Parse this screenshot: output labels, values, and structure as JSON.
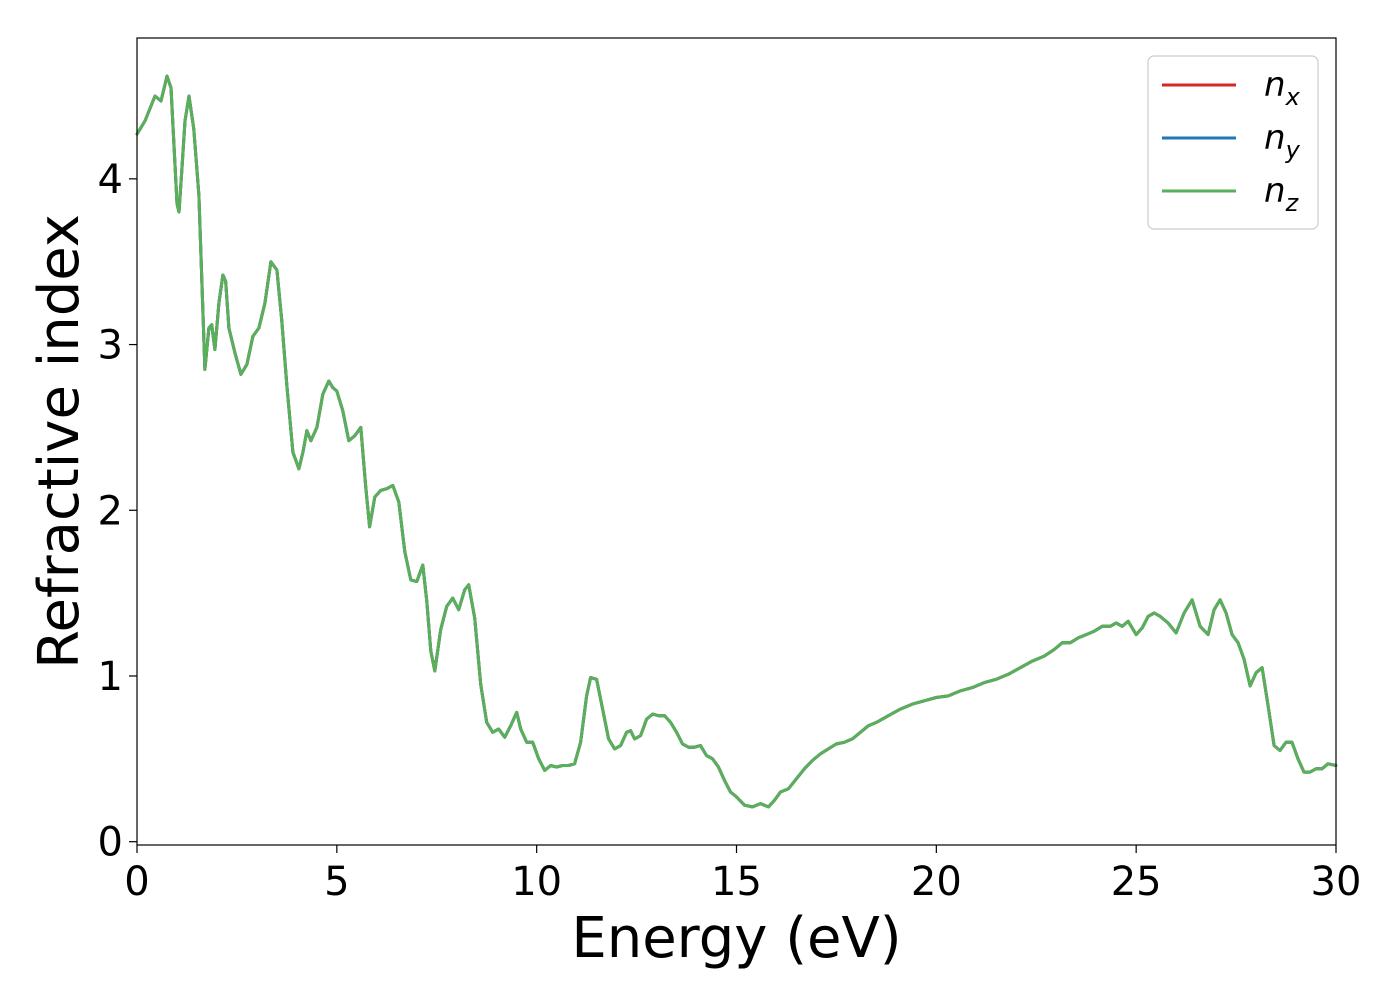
{
  "chart_data": {
    "type": "line",
    "xlabel": "Energy (eV)",
    "ylabel": "Refractive index",
    "xlim": [
      0,
      30
    ],
    "ylim": [
      -0.02,
      4.85
    ],
    "xticks": [
      0,
      5,
      10,
      15,
      20,
      25,
      30
    ],
    "yticks": [
      0,
      1,
      2,
      3,
      4
    ],
    "grid": false,
    "legend_position": "top-right",
    "series": [
      {
        "name": "n",
        "subscript": "x",
        "color": "#d62728",
        "x": [
          0,
          0.2,
          0.45,
          0.6,
          0.75,
          0.85,
          1.0,
          1.05,
          1.12,
          1.2,
          1.3,
          1.42,
          1.55,
          1.7,
          1.8,
          1.87,
          1.95,
          2.05,
          2.15,
          2.22,
          2.3,
          2.45,
          2.6,
          2.75,
          2.9,
          3.05,
          3.2,
          3.35,
          3.5,
          3.62,
          3.75,
          3.9,
          4.05,
          4.15,
          4.25,
          4.35,
          4.5,
          4.65,
          4.8,
          4.9,
          5.0,
          5.15,
          5.3,
          5.45,
          5.6,
          5.72,
          5.82,
          5.95,
          6.1,
          6.25,
          6.4,
          6.55,
          6.7,
          6.85,
          7.0,
          7.15,
          7.25,
          7.35,
          7.45,
          7.6,
          7.75,
          7.9,
          8.05,
          8.2,
          8.3,
          8.45,
          8.6,
          8.75,
          8.9,
          9.05,
          9.2,
          9.35,
          9.5,
          9.6,
          9.75,
          9.9,
          10.05,
          10.2,
          10.35,
          10.5,
          10.65,
          10.8,
          10.95,
          11.1,
          11.25,
          11.35,
          11.5,
          11.65,
          11.8,
          11.95,
          12.1,
          12.25,
          12.35,
          12.45,
          12.6,
          12.75,
          12.9,
          13.05,
          13.2,
          13.35,
          13.5,
          13.65,
          13.8,
          13.95,
          14.1,
          14.25,
          14.4,
          14.55,
          14.7,
          14.85,
          15.0,
          15.2,
          15.4,
          15.6,
          15.8,
          15.95,
          16.1,
          16.3,
          16.5,
          16.7,
          16.9,
          17.1,
          17.3,
          17.5,
          17.7,
          17.9,
          18.1,
          18.3,
          18.5,
          18.8,
          19.1,
          19.4,
          19.7,
          20.0,
          20.3,
          20.6,
          20.9,
          21.2,
          21.5,
          21.8,
          22.1,
          22.4,
          22.7,
          22.95,
          23.15,
          23.35,
          23.55,
          23.75,
          23.95,
          24.15,
          24.35,
          24.5,
          24.65,
          24.8,
          25.0,
          25.15,
          25.3,
          25.45,
          25.6,
          25.8,
          26.0,
          26.2,
          26.4,
          26.6,
          26.8,
          26.95,
          27.1,
          27.25,
          27.4,
          27.55,
          27.7,
          27.85,
          28.0,
          28.15,
          28.3,
          28.45,
          28.6,
          28.75,
          28.9,
          29.05,
          29.2,
          29.35,
          29.5,
          29.65,
          29.8,
          30.0
        ],
        "y": [
          4.27,
          4.35,
          4.5,
          4.47,
          4.62,
          4.55,
          3.85,
          3.8,
          4.05,
          4.35,
          4.5,
          4.3,
          3.9,
          2.85,
          3.1,
          3.12,
          2.97,
          3.25,
          3.42,
          3.38,
          3.1,
          2.95,
          2.82,
          2.88,
          3.05,
          3.1,
          3.25,
          3.5,
          3.45,
          3.15,
          2.75,
          2.35,
          2.25,
          2.35,
          2.48,
          2.42,
          2.5,
          2.7,
          2.78,
          2.74,
          2.72,
          2.6,
          2.42,
          2.45,
          2.5,
          2.15,
          1.9,
          2.08,
          2.12,
          2.13,
          2.15,
          2.05,
          1.75,
          1.58,
          1.57,
          1.67,
          1.45,
          1.15,
          1.03,
          1.28,
          1.42,
          1.47,
          1.4,
          1.52,
          1.55,
          1.35,
          0.95,
          0.72,
          0.66,
          0.68,
          0.63,
          0.7,
          0.78,
          0.68,
          0.6,
          0.6,
          0.5,
          0.43,
          0.46,
          0.45,
          0.46,
          0.46,
          0.47,
          0.6,
          0.88,
          0.99,
          0.98,
          0.8,
          0.62,
          0.56,
          0.58,
          0.66,
          0.67,
          0.62,
          0.64,
          0.74,
          0.77,
          0.76,
          0.76,
          0.72,
          0.66,
          0.59,
          0.57,
          0.57,
          0.58,
          0.52,
          0.5,
          0.45,
          0.37,
          0.3,
          0.27,
          0.22,
          0.21,
          0.23,
          0.21,
          0.25,
          0.3,
          0.32,
          0.38,
          0.44,
          0.49,
          0.53,
          0.56,
          0.59,
          0.6,
          0.62,
          0.66,
          0.7,
          0.72,
          0.76,
          0.8,
          0.83,
          0.85,
          0.87,
          0.88,
          0.91,
          0.93,
          0.96,
          0.98,
          1.01,
          1.05,
          1.09,
          1.12,
          1.16,
          1.2,
          1.2,
          1.23,
          1.25,
          1.27,
          1.3,
          1.3,
          1.32,
          1.3,
          1.33,
          1.25,
          1.29,
          1.36,
          1.38,
          1.36,
          1.32,
          1.26,
          1.38,
          1.46,
          1.3,
          1.25,
          1.4,
          1.46,
          1.38,
          1.25,
          1.2,
          1.1,
          0.94,
          1.02,
          1.05,
          0.82,
          0.58,
          0.55,
          0.6,
          0.6,
          0.5,
          0.42,
          0.42,
          0.44,
          0.44,
          0.47,
          0.46
        ]
      },
      {
        "name": "n",
        "subscript": "y",
        "color": "#1f77b4",
        "x": [
          0,
          0.2,
          0.45,
          0.6,
          0.75,
          0.85,
          1.0,
          1.05,
          1.12,
          1.2,
          1.3,
          1.42,
          1.55,
          1.7,
          1.8,
          1.87,
          1.95,
          2.05,
          2.15,
          2.22,
          2.3,
          2.45,
          2.6,
          2.75,
          2.9,
          3.05,
          3.2,
          3.35,
          3.5,
          3.62,
          3.75,
          3.9,
          4.05,
          4.15,
          4.25,
          4.35,
          4.5,
          4.65,
          4.8,
          4.9,
          5.0,
          5.15,
          5.3,
          5.45,
          5.6,
          5.72,
          5.82,
          5.95,
          6.1,
          6.25,
          6.4,
          6.55,
          6.7,
          6.85,
          7.0,
          7.15,
          7.25,
          7.35,
          7.45,
          7.6,
          7.75,
          7.9,
          8.05,
          8.2,
          8.3,
          8.45,
          8.6,
          8.75,
          8.9,
          9.05,
          9.2,
          9.35,
          9.5,
          9.6,
          9.75,
          9.9,
          10.05,
          10.2,
          10.35,
          10.5,
          10.65,
          10.8,
          10.95,
          11.1,
          11.25,
          11.35,
          11.5,
          11.65,
          11.8,
          11.95,
          12.1,
          12.25,
          12.35,
          12.45,
          12.6,
          12.75,
          12.9,
          13.05,
          13.2,
          13.35,
          13.5,
          13.65,
          13.8,
          13.95,
          14.1,
          14.25,
          14.4,
          14.55,
          14.7,
          14.85,
          15.0,
          15.2,
          15.4,
          15.6,
          15.8,
          15.95,
          16.1,
          16.3,
          16.5,
          16.7,
          16.9,
          17.1,
          17.3,
          17.5,
          17.7,
          17.9,
          18.1,
          18.3,
          18.5,
          18.8,
          19.1,
          19.4,
          19.7,
          20.0,
          20.3,
          20.6,
          20.9,
          21.2,
          21.5,
          21.8,
          22.1,
          22.4,
          22.7,
          22.95,
          23.15,
          23.35,
          23.55,
          23.75,
          23.95,
          24.15,
          24.35,
          24.5,
          24.65,
          24.8,
          25.0,
          25.15,
          25.3,
          25.45,
          25.6,
          25.8,
          26.0,
          26.2,
          26.4,
          26.6,
          26.8,
          26.95,
          27.1,
          27.25,
          27.4,
          27.55,
          27.7,
          27.85,
          28.0,
          28.15,
          28.3,
          28.45,
          28.6,
          28.75,
          28.9,
          29.05,
          29.2,
          29.35,
          29.5,
          29.65,
          29.8,
          30.0
        ],
        "y": [
          4.27,
          4.35,
          4.5,
          4.47,
          4.62,
          4.55,
          3.85,
          3.8,
          4.05,
          4.35,
          4.5,
          4.3,
          3.9,
          2.85,
          3.1,
          3.12,
          2.97,
          3.25,
          3.42,
          3.38,
          3.1,
          2.95,
          2.82,
          2.88,
          3.05,
          3.1,
          3.25,
          3.5,
          3.45,
          3.15,
          2.75,
          2.35,
          2.25,
          2.35,
          2.48,
          2.42,
          2.5,
          2.7,
          2.78,
          2.74,
          2.72,
          2.6,
          2.42,
          2.45,
          2.5,
          2.15,
          1.9,
          2.08,
          2.12,
          2.13,
          2.15,
          2.05,
          1.75,
          1.58,
          1.57,
          1.67,
          1.45,
          1.15,
          1.03,
          1.28,
          1.42,
          1.47,
          1.4,
          1.52,
          1.55,
          1.35,
          0.95,
          0.72,
          0.66,
          0.68,
          0.63,
          0.7,
          0.78,
          0.68,
          0.6,
          0.6,
          0.5,
          0.43,
          0.46,
          0.45,
          0.46,
          0.46,
          0.47,
          0.6,
          0.88,
          0.99,
          0.98,
          0.8,
          0.62,
          0.56,
          0.58,
          0.66,
          0.67,
          0.62,
          0.64,
          0.74,
          0.77,
          0.76,
          0.76,
          0.72,
          0.66,
          0.59,
          0.57,
          0.57,
          0.58,
          0.52,
          0.5,
          0.45,
          0.37,
          0.3,
          0.27,
          0.22,
          0.21,
          0.23,
          0.21,
          0.25,
          0.3,
          0.32,
          0.38,
          0.44,
          0.49,
          0.53,
          0.56,
          0.59,
          0.6,
          0.62,
          0.66,
          0.7,
          0.72,
          0.76,
          0.8,
          0.83,
          0.85,
          0.87,
          0.88,
          0.91,
          0.93,
          0.96,
          0.98,
          1.01,
          1.05,
          1.09,
          1.12,
          1.16,
          1.2,
          1.2,
          1.23,
          1.25,
          1.27,
          1.3,
          1.3,
          1.32,
          1.3,
          1.33,
          1.25,
          1.29,
          1.36,
          1.38,
          1.36,
          1.32,
          1.26,
          1.38,
          1.46,
          1.3,
          1.25,
          1.4,
          1.46,
          1.38,
          1.25,
          1.2,
          1.1,
          0.94,
          1.02,
          1.05,
          0.82,
          0.58,
          0.55,
          0.6,
          0.6,
          0.5,
          0.42,
          0.42,
          0.44,
          0.44,
          0.47,
          0.46
        ]
      },
      {
        "name": "n",
        "subscript": "z",
        "color": "#5aaf5a",
        "x": [
          0,
          0.2,
          0.45,
          0.6,
          0.75,
          0.85,
          1.0,
          1.05,
          1.12,
          1.2,
          1.3,
          1.42,
          1.55,
          1.7,
          1.8,
          1.87,
          1.95,
          2.05,
          2.15,
          2.22,
          2.3,
          2.45,
          2.6,
          2.75,
          2.9,
          3.05,
          3.2,
          3.35,
          3.5,
          3.62,
          3.75,
          3.9,
          4.05,
          4.15,
          4.25,
          4.35,
          4.5,
          4.65,
          4.8,
          4.9,
          5.0,
          5.15,
          5.3,
          5.45,
          5.6,
          5.72,
          5.82,
          5.95,
          6.1,
          6.25,
          6.4,
          6.55,
          6.7,
          6.85,
          7.0,
          7.15,
          7.25,
          7.35,
          7.45,
          7.6,
          7.75,
          7.9,
          8.05,
          8.2,
          8.3,
          8.45,
          8.6,
          8.75,
          8.9,
          9.05,
          9.2,
          9.35,
          9.5,
          9.6,
          9.75,
          9.9,
          10.05,
          10.2,
          10.35,
          10.5,
          10.65,
          10.8,
          10.95,
          11.1,
          11.25,
          11.35,
          11.5,
          11.65,
          11.8,
          11.95,
          12.1,
          12.25,
          12.35,
          12.45,
          12.6,
          12.75,
          12.9,
          13.05,
          13.2,
          13.35,
          13.5,
          13.65,
          13.8,
          13.95,
          14.1,
          14.25,
          14.4,
          14.55,
          14.7,
          14.85,
          15.0,
          15.2,
          15.4,
          15.6,
          15.8,
          15.95,
          16.1,
          16.3,
          16.5,
          16.7,
          16.9,
          17.1,
          17.3,
          17.5,
          17.7,
          17.9,
          18.1,
          18.3,
          18.5,
          18.8,
          19.1,
          19.4,
          19.7,
          20.0,
          20.3,
          20.6,
          20.9,
          21.2,
          21.5,
          21.8,
          22.1,
          22.4,
          22.7,
          22.95,
          23.15,
          23.35,
          23.55,
          23.75,
          23.95,
          24.15,
          24.35,
          24.5,
          24.65,
          24.8,
          25.0,
          25.15,
          25.3,
          25.45,
          25.6,
          25.8,
          26.0,
          26.2,
          26.4,
          26.6,
          26.8,
          26.95,
          27.1,
          27.25,
          27.4,
          27.55,
          27.7,
          27.85,
          28.0,
          28.15,
          28.3,
          28.45,
          28.6,
          28.75,
          28.9,
          29.05,
          29.2,
          29.35,
          29.5,
          29.65,
          29.8,
          30.0
        ],
        "y": [
          4.27,
          4.35,
          4.5,
          4.47,
          4.62,
          4.55,
          3.85,
          3.8,
          4.05,
          4.35,
          4.5,
          4.3,
          3.9,
          2.85,
          3.1,
          3.12,
          2.97,
          3.25,
          3.42,
          3.38,
          3.1,
          2.95,
          2.82,
          2.88,
          3.05,
          3.1,
          3.25,
          3.5,
          3.45,
          3.15,
          2.75,
          2.35,
          2.25,
          2.35,
          2.48,
          2.42,
          2.5,
          2.7,
          2.78,
          2.74,
          2.72,
          2.6,
          2.42,
          2.45,
          2.5,
          2.15,
          1.9,
          2.08,
          2.12,
          2.13,
          2.15,
          2.05,
          1.75,
          1.58,
          1.57,
          1.67,
          1.45,
          1.15,
          1.03,
          1.28,
          1.42,
          1.47,
          1.4,
          1.52,
          1.55,
          1.35,
          0.95,
          0.72,
          0.66,
          0.68,
          0.63,
          0.7,
          0.78,
          0.68,
          0.6,
          0.6,
          0.5,
          0.43,
          0.46,
          0.45,
          0.46,
          0.46,
          0.47,
          0.6,
          0.88,
          0.99,
          0.98,
          0.8,
          0.62,
          0.56,
          0.58,
          0.66,
          0.67,
          0.62,
          0.64,
          0.74,
          0.77,
          0.76,
          0.76,
          0.72,
          0.66,
          0.59,
          0.57,
          0.57,
          0.58,
          0.52,
          0.5,
          0.45,
          0.37,
          0.3,
          0.27,
          0.22,
          0.21,
          0.23,
          0.21,
          0.25,
          0.3,
          0.32,
          0.38,
          0.44,
          0.49,
          0.53,
          0.56,
          0.59,
          0.6,
          0.62,
          0.66,
          0.7,
          0.72,
          0.76,
          0.8,
          0.83,
          0.85,
          0.87,
          0.88,
          0.91,
          0.93,
          0.96,
          0.98,
          1.01,
          1.05,
          1.09,
          1.12,
          1.16,
          1.2,
          1.2,
          1.23,
          1.25,
          1.27,
          1.3,
          1.3,
          1.32,
          1.3,
          1.33,
          1.25,
          1.29,
          1.36,
          1.38,
          1.36,
          1.32,
          1.26,
          1.38,
          1.46,
          1.3,
          1.25,
          1.4,
          1.46,
          1.38,
          1.25,
          1.2,
          1.1,
          0.94,
          1.02,
          1.05,
          0.82,
          0.58,
          0.55,
          0.6,
          0.6,
          0.5,
          0.42,
          0.42,
          0.44,
          0.44,
          0.47,
          0.46
        ]
      }
    ]
  }
}
